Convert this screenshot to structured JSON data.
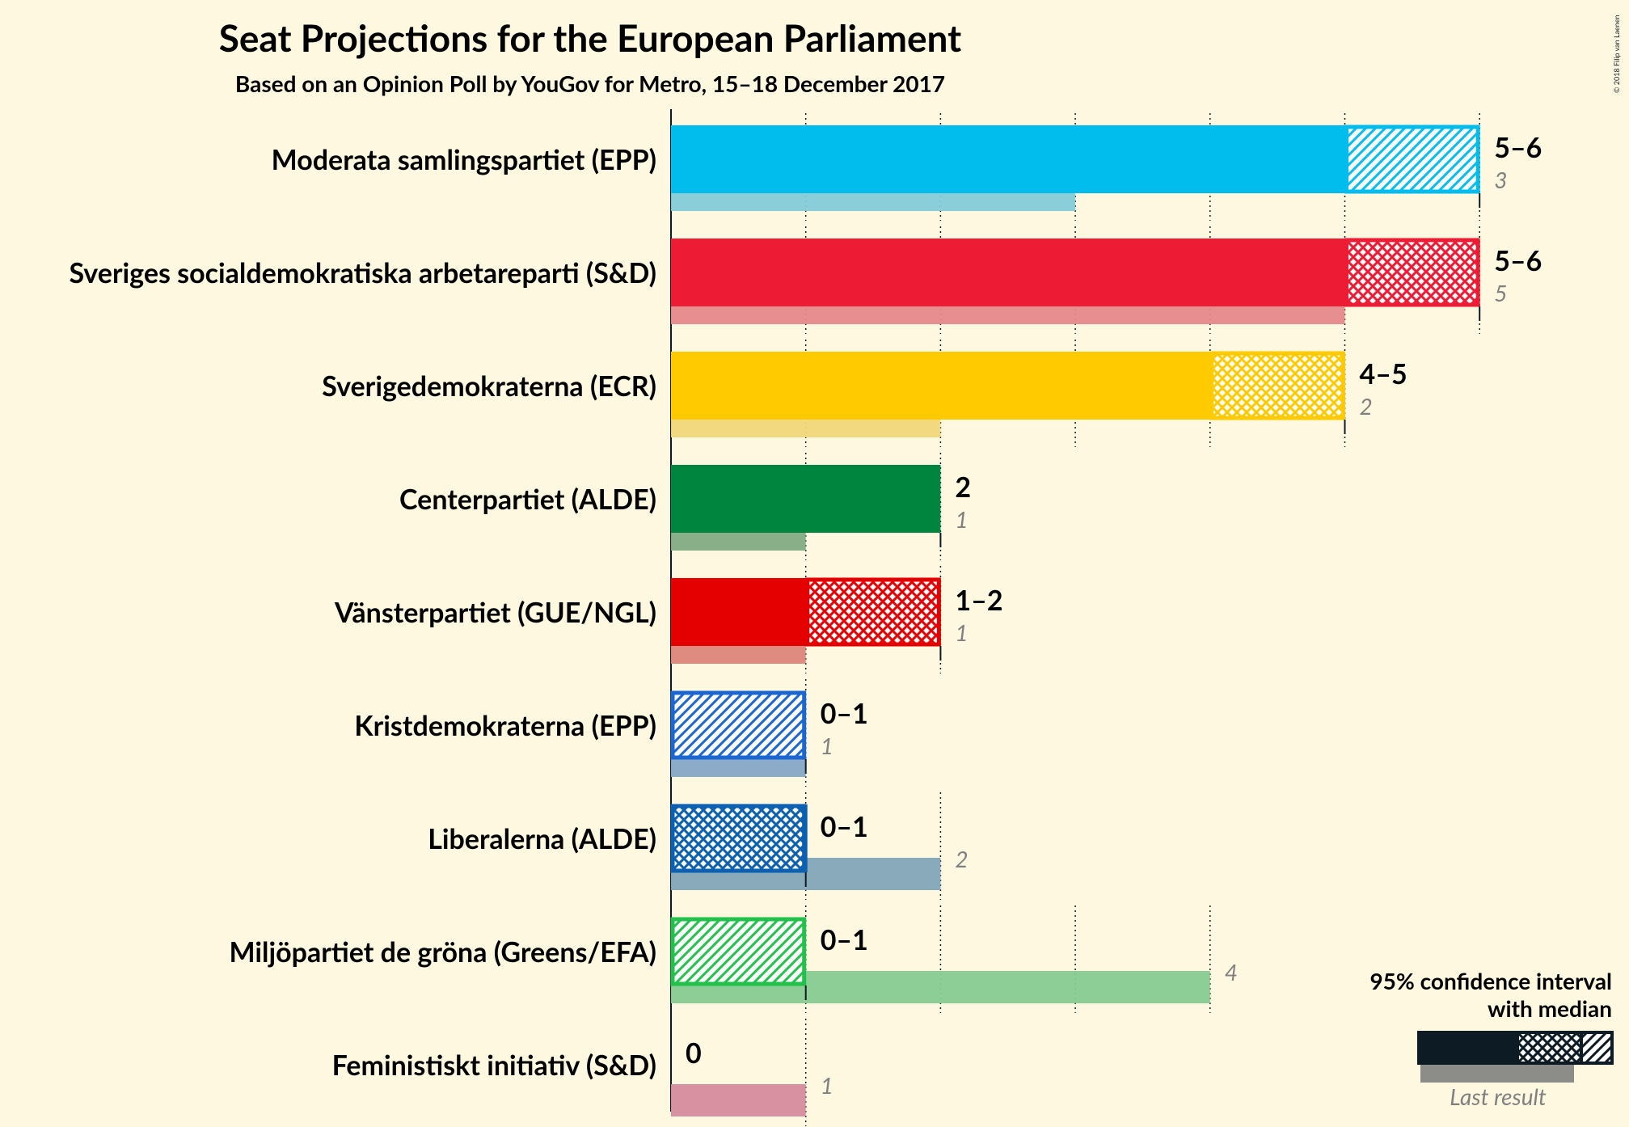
{
  "chart_data": {
    "type": "bar",
    "title": "Seat Projections for the European Parliament",
    "subtitle": "Based on an Opinion Poll by YouGov for Metro, 15–18 December 2017",
    "copyright": "© 2018 Filip van Laenen",
    "xlim": [
      0,
      6
    ],
    "grid": "dotted vertical",
    "legend": {
      "position": "bottom-right",
      "title_line1": "95% confidence interval",
      "title_line2": "with median",
      "last_result": "Last result"
    },
    "parties": [
      {
        "name": "Moderata samlingspartiet (EPP)",
        "color": "#00BDED",
        "lastcolor": "#83CBD8",
        "low": 5,
        "median": 5,
        "high": 6,
        "range_label": "5–6",
        "last": 3,
        "last_label": "3",
        "hatch": "diag"
      },
      {
        "name": "Sveriges socialdemokratiska arbetareparti (S&D)",
        "color": "#EE1B35",
        "lastcolor": "#E6888C",
        "low": 5,
        "median": 5,
        "high": 6,
        "range_label": "5–6",
        "last": 5,
        "last_label": "5",
        "hatch": "cross"
      },
      {
        "name": "Sverigedemokraterna (ECR)",
        "color": "#FFCA00",
        "lastcolor": "#F1D77A",
        "low": 4,
        "median": 4,
        "high": 5,
        "range_label": "4–5",
        "last": 2,
        "last_label": "2",
        "hatch": "cross"
      },
      {
        "name": "Centerpartiet (ALDE)",
        "color": "#00853F",
        "lastcolor": "#83AB84",
        "low": 2,
        "median": 2,
        "high": 2,
        "range_label": "2",
        "last": 1,
        "last_label": "1",
        "hatch": "none"
      },
      {
        "name": "Vänsterpartiet (GUE/NGL)",
        "color": "#E40001",
        "lastcolor": "#DE857A",
        "low": 1,
        "median": 1,
        "high": 2,
        "range_label": "1–2",
        "last": 1,
        "last_label": "1",
        "hatch": "cross"
      },
      {
        "name": "Kristdemokraterna (EPP)",
        "color": "#1B66D1",
        "lastcolor": "#86A6C7",
        "low": 0,
        "median": 0,
        "high": 1,
        "range_label": "0–1",
        "last": 1,
        "last_label": "1",
        "hatch": "diag"
      },
      {
        "name": "Liberalerna (ALDE)",
        "color": "#0C60B2",
        "lastcolor": "#83A5B8",
        "low": 0,
        "median": 1,
        "high": 1,
        "range_label": "0–1",
        "last": 2,
        "last_label": "2",
        "hatch": "cross"
      },
      {
        "name": "Miljöpartiet de gröna (Greens/EFA)",
        "color": "#22C14B",
        "lastcolor": "#87CB91",
        "low": 0,
        "median": 0,
        "high": 1,
        "range_label": "0–1",
        "last": 4,
        "last_label": "4",
        "hatch": "diag"
      },
      {
        "name": "Feministiskt initiativ (S&D)",
        "color": "#CD1B68",
        "lastcolor": "#D68B9C",
        "low": 0,
        "median": 0,
        "high": 0,
        "range_label": "0",
        "last": 1,
        "last_label": "1",
        "hatch": "none"
      }
    ]
  }
}
